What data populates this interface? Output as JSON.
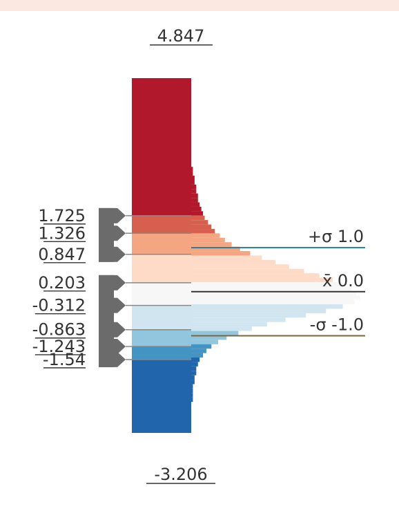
{
  "chart_data": {
    "type": "histogram-legend",
    "max_label": "4.847",
    "min_label": "-3.206",
    "value_range": [
      -3.206,
      4.847
    ],
    "class_breaks": [
      {
        "label": "1.725",
        "value": 1.725
      },
      {
        "label": "1.326",
        "value": 1.326
      },
      {
        "label": "0.847",
        "value": 0.847
      },
      {
        "label": "0.203",
        "value": 0.203
      },
      {
        "label": "-0.312",
        "value": -0.312
      },
      {
        "label": "-0.863",
        "value": -0.863
      },
      {
        "label": "-1.243",
        "value": -1.243
      },
      {
        "label": "-1.54",
        "value": -1.54
      }
    ],
    "classes": [
      {
        "from": 1.725,
        "to": 4.847,
        "color": "#b2182b"
      },
      {
        "from": 1.326,
        "to": 1.725,
        "color": "#d6604d"
      },
      {
        "from": 0.847,
        "to": 1.326,
        "color": "#f4a582"
      },
      {
        "from": 0.203,
        "to": 0.847,
        "color": "#fddbc7"
      },
      {
        "from": -0.312,
        "to": 0.203,
        "color": "#f7f7f7"
      },
      {
        "from": -0.863,
        "to": -0.312,
        "color": "#d1e5f0"
      },
      {
        "from": -1.243,
        "to": -0.863,
        "color": "#92c5de"
      },
      {
        "from": -1.54,
        "to": -1.243,
        "color": "#4393c3"
      },
      {
        "from": -3.206,
        "to": -1.54,
        "color": "#2166ac"
      }
    ],
    "reference_lines": [
      {
        "label": "+σ 1.0",
        "value": 1.0
      },
      {
        "label": "x̄ 0.0",
        "value": 0.0
      },
      {
        "label": "-σ -1.0",
        "value": -1.0
      }
    ],
    "histogram_counts": [
      0,
      0,
      0,
      0,
      0,
      0,
      0,
      0,
      0,
      0,
      0,
      0,
      0,
      0,
      0,
      0,
      0,
      0,
      0,
      0,
      1,
      1,
      2,
      2,
      3,
      3,
      4,
      4,
      5,
      6,
      7,
      8,
      10,
      12,
      14,
      17,
      20,
      24,
      29,
      35,
      42,
      50,
      58,
      67,
      76,
      84,
      90,
      95,
      98,
      100,
      97,
      90,
      80,
      68,
      56,
      45,
      36,
      28,
      21,
      16,
      12,
      9,
      7,
      5,
      4,
      3,
      3,
      2,
      2,
      1,
      1,
      1,
      1,
      0,
      0,
      0,
      0,
      0,
      0,
      0
    ]
  }
}
